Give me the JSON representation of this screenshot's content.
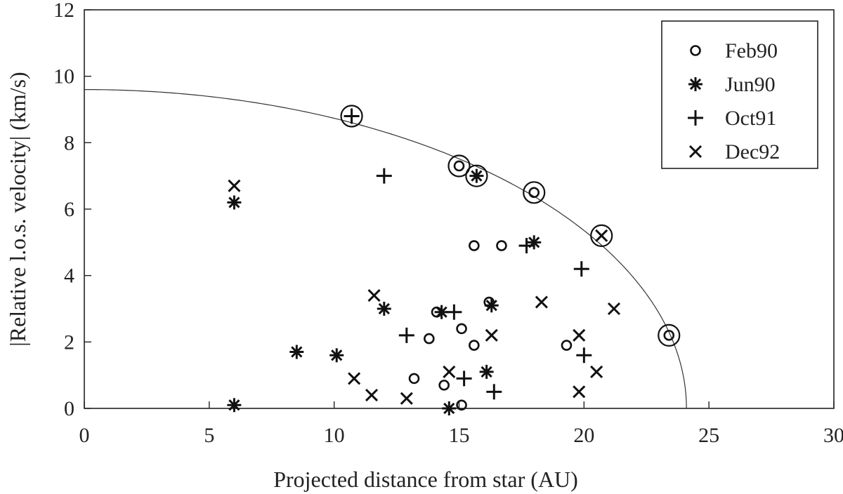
{
  "chart_data": {
    "type": "scatter",
    "xlabel": "Projected distance from star (AU)",
    "ylabel": "|Relative l.o.s. velocity| (km/s)",
    "xlim": [
      0,
      30
    ],
    "ylim": [
      0,
      12
    ],
    "x_ticks": [
      0,
      5,
      10,
      15,
      20,
      25,
      30
    ],
    "y_ticks": [
      0,
      2,
      4,
      6,
      8,
      10,
      12
    ],
    "grid": false,
    "legend_position": "top-right",
    "series": [
      {
        "name": "Feb90",
        "marker": "circle",
        "points": [
          [
            13.2,
            0.9
          ],
          [
            13.8,
            2.1
          ],
          [
            14.1,
            2.9
          ],
          [
            14.4,
            0.7
          ],
          [
            15.1,
            2.4
          ],
          [
            15.1,
            0.1
          ],
          [
            15.6,
            1.9
          ],
          [
            15.6,
            4.9
          ],
          [
            16.2,
            3.2
          ],
          [
            16.7,
            4.9
          ],
          [
            19.3,
            1.9
          ],
          [
            18.0,
            6.5
          ],
          [
            15.0,
            7.3
          ],
          [
            23.4,
            2.2
          ]
        ]
      },
      {
        "name": "Jun90",
        "marker": "asterisk",
        "points": [
          [
            6.0,
            6.2
          ],
          [
            6.0,
            0.1
          ],
          [
            8.5,
            1.7
          ],
          [
            10.1,
            1.6
          ],
          [
            12.0,
            3.0
          ],
          [
            14.3,
            2.9
          ],
          [
            14.6,
            0.0
          ],
          [
            16.1,
            1.1
          ],
          [
            16.3,
            3.1
          ],
          [
            18.0,
            5.0
          ],
          [
            15.7,
            7.0
          ]
        ]
      },
      {
        "name": "Oct91",
        "marker": "plus",
        "points": [
          [
            12.0,
            7.0
          ],
          [
            12.9,
            2.2
          ],
          [
            14.8,
            2.9
          ],
          [
            15.2,
            0.9
          ],
          [
            16.4,
            0.5
          ],
          [
            17.7,
            4.9
          ],
          [
            19.9,
            4.2
          ],
          [
            20.0,
            1.6
          ],
          [
            10.7,
            8.8
          ]
        ]
      },
      {
        "name": "Dec92",
        "marker": "cross",
        "points": [
          [
            6.0,
            6.7
          ],
          [
            10.8,
            0.9
          ],
          [
            11.5,
            0.4
          ],
          [
            11.6,
            3.4
          ],
          [
            12.9,
            0.3
          ],
          [
            14.6,
            1.1
          ],
          [
            16.3,
            2.2
          ],
          [
            18.3,
            3.2
          ],
          [
            19.8,
            2.2
          ],
          [
            19.8,
            0.5
          ],
          [
            20.5,
            1.1
          ],
          [
            21.2,
            3.0
          ],
          [
            20.7,
            5.2
          ]
        ]
      }
    ],
    "highlighted_points": [
      [
        10.7,
        8.8
      ],
      [
        15.0,
        7.3
      ],
      [
        15.7,
        7.0
      ],
      [
        18.0,
        6.5
      ],
      [
        20.7,
        5.2
      ],
      [
        23.4,
        2.2
      ]
    ],
    "curve": {
      "type": "ellipse-quadrant",
      "x_intercept": 24.1,
      "y_intercept": 9.6
    }
  }
}
